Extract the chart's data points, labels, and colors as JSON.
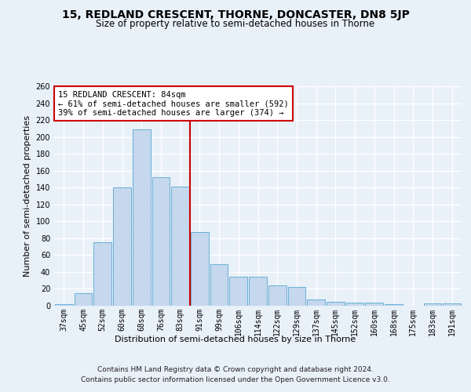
{
  "title": "15, REDLAND CRESCENT, THORNE, DONCASTER, DN8 5JP",
  "subtitle": "Size of property relative to semi-detached houses in Thorne",
  "xlabel": "Distribution of semi-detached houses by size in Thorne",
  "ylabel": "Number of semi-detached properties",
  "categories": [
    "37sqm",
    "45sqm",
    "52sqm",
    "60sqm",
    "68sqm",
    "76sqm",
    "83sqm",
    "91sqm",
    "99sqm",
    "106sqm",
    "114sqm",
    "122sqm",
    "129sqm",
    "137sqm",
    "145sqm",
    "152sqm",
    "160sqm",
    "168sqm",
    "175sqm",
    "183sqm",
    "191sqm"
  ],
  "values": [
    2,
    15,
    75,
    140,
    209,
    152,
    141,
    87,
    49,
    34,
    34,
    24,
    22,
    7,
    5,
    4,
    4,
    2,
    0,
    3,
    3
  ],
  "bar_color": "#c5d8ed",
  "bar_edge_color": "#6aaed6",
  "property_bin_index": 6,
  "vline_color": "#cc0000",
  "annotation_text": "15 REDLAND CRESCENT: 84sqm\n← 61% of semi-detached houses are smaller (592)\n39% of semi-detached houses are larger (374) →",
  "annotation_box_color": "#ffffff",
  "annotation_box_edge": "#cc0000",
  "ylim": [
    0,
    260
  ],
  "background_color": "#e8f0f8",
  "plot_bg_color": "#e8f0f8",
  "grid_color": "#ffffff",
  "title_fontsize": 10,
  "subtitle_fontsize": 8.5,
  "axis_label_fontsize": 8,
  "tick_fontsize": 7,
  "annotation_fontsize": 7.5,
  "footer_fontsize": 6.5,
  "footer_line1": "Contains HM Land Registry data © Crown copyright and database right 2024.",
  "footer_line2": "Contains public sector information licensed under the Open Government Licence v3.0."
}
